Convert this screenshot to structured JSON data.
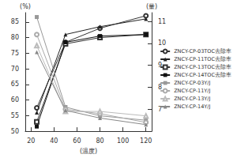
{
  "chart_data": {
    "type": "line",
    "xlabel": "(温度)",
    "ylabel": "(%)",
    "y2label": "(量)",
    "x": [
      25,
      50,
      80,
      120
    ],
    "xlim": [
      15,
      125
    ],
    "xticks": [
      20,
      40,
      60,
      80,
      100,
      120
    ],
    "ylim": [
      50,
      88
    ],
    "yticks": [
      50,
      55,
      60,
      65,
      70,
      75,
      80,
      85
    ],
    "y2lim": [
      6,
      11.4
    ],
    "y2ticks": [
      7,
      8,
      9,
      10,
      11
    ],
    "legend": "right",
    "grid": false,
    "series": [
      {
        "name": "ZNCY-CP-03TOC去除率",
        "color": "#333333",
        "marker": "circle_open",
        "values": [
          57.5,
          78.5,
          83,
          87
        ]
      },
      {
        "name": "ZNCY-CP-11TOC去除率",
        "color": "#222222",
        "marker": "triangle_filled",
        "values": [
          56,
          81,
          83.5,
          86
        ]
      },
      {
        "name": "ZNCY-CP-13TOC去除率",
        "color": "#333333",
        "marker": "square_open",
        "values": [
          53,
          78,
          80,
          81
        ]
      },
      {
        "name": "ZNCY-CP-14TOC去除率",
        "color": "#111111",
        "marker": "square_filled",
        "values": [
          51.5,
          78.5,
          80.5,
          81
        ]
      },
      {
        "name": "ZNCY-CP-03Y/J",
        "color": "#999999",
        "marker": "square_filled",
        "axis": "y2",
        "values": [
          11.2,
          7.1,
          6.7,
          6.5
        ]
      },
      {
        "name": "ZNCY-CP-11Y/J",
        "color": "#aaaaaa",
        "marker": "circle_open",
        "axis": "y2",
        "values": [
          10.4,
          7.0,
          6.8,
          6.4
        ]
      },
      {
        "name": "ZNCY-CP-13Y/J",
        "color": "#bbbbbb",
        "marker": "triangle_open",
        "axis": "y2",
        "values": [
          9.9,
          6.9,
          6.9,
          6.7
        ]
      },
      {
        "name": "ZNCY-CP-14Y/J",
        "color": "#888888",
        "marker": "triangle_filled",
        "axis": "y2",
        "values": [
          9.6,
          6.95,
          6.6,
          6.3
        ]
      }
    ]
  }
}
